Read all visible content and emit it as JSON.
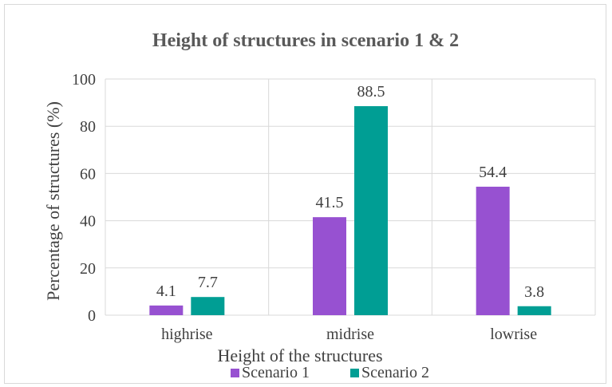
{
  "chart_data": {
    "type": "bar",
    "title": "Height of structures in scenario 1 & 2",
    "xlabel": "Height of the structures",
    "ylabel": "Percentage of structures (%)",
    "categories": [
      "highrise",
      "midrise",
      "lowrise"
    ],
    "series": [
      {
        "name": "Scenario 1",
        "values": [
          4.1,
          41.5,
          54.4
        ],
        "color": "#9751d1"
      },
      {
        "name": "Scenario 2",
        "values": [
          7.7,
          88.5,
          3.8
        ],
        "color": "#009e94"
      }
    ],
    "ylim": [
      0,
      100
    ],
    "yticks": [
      0,
      20,
      40,
      60,
      80,
      100
    ],
    "grid": true,
    "legend": "bottom",
    "gridline_color": "#d9d9d9",
    "text_color": "#404040"
  }
}
